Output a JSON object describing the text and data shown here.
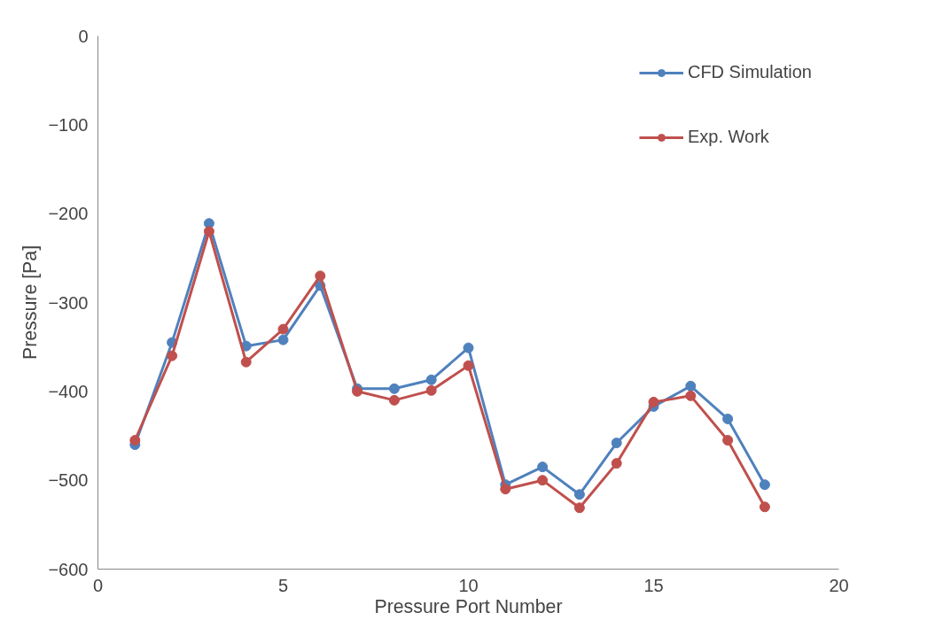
{
  "chart_data": {
    "type": "line",
    "xlabel": "Pressure Port Number",
    "ylabel": "Pressure [Pa]",
    "x": [
      1,
      2,
      3,
      4,
      5,
      6,
      7,
      8,
      9,
      10,
      11,
      12,
      13,
      14,
      15,
      16,
      17,
      18
    ],
    "xlim": [
      0,
      20
    ],
    "xticks": [
      0,
      5,
      10,
      15,
      20
    ],
    "ylim": [
      -600,
      0
    ],
    "yticks": [
      -600,
      -500,
      -400,
      -300,
      -200,
      -100,
      0
    ],
    "grid": false,
    "legend": "top right",
    "marker": "circle",
    "line_style": "solid",
    "series": [
      {
        "name": "CFD Simulation",
        "color": "#4f81bd",
        "values": [
          -460,
          -345,
          -211,
          -349,
          -342,
          -281,
          -397,
          -397,
          -387,
          -351,
          -505,
          -485,
          -516,
          -458,
          -417,
          -394,
          -431,
          -505
        ]
      },
      {
        "name": "Exp. Work",
        "color": "#c0504d",
        "values": [
          -455,
          -360,
          -220,
          -367,
          -330,
          -270,
          -400,
          -410,
          -399,
          -371,
          -510,
          -500,
          -531,
          -481,
          -412,
          -405,
          -455,
          -530
        ]
      }
    ]
  }
}
